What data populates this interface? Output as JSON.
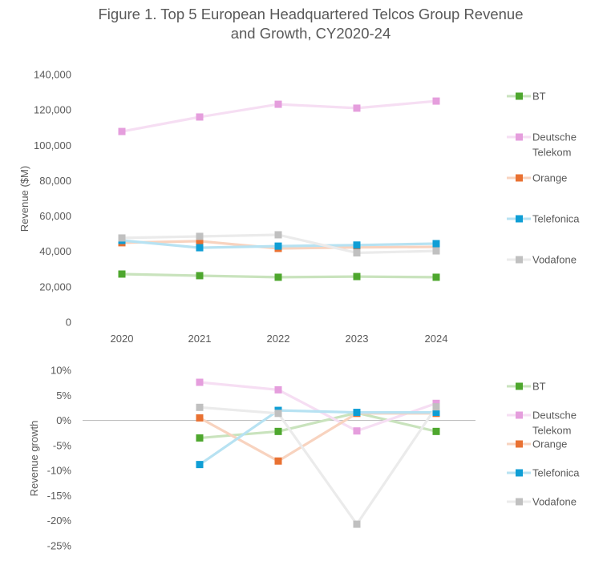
{
  "title_line1": "Figure 1. Top 5 European Headquartered Telcos Group Revenue",
  "title_line2": "and Growth, CY2020-24",
  "series_styles": [
    {
      "name": "BT",
      "marker": "#4ea72e",
      "line": "#c9e3bd"
    },
    {
      "name": "Deutsche Telekom",
      "marker": "#e59edd",
      "line": "#f6def3"
    },
    {
      "name": "Orange",
      "marker": "#e97132",
      "line": "#f8d3bf"
    },
    {
      "name": "Telefonica",
      "marker": "#0f9ed5",
      "line": "#b7e2f2"
    },
    {
      "name": "Vodafone",
      "marker": "#c0c0c0",
      "line": "#ebebeb"
    }
  ],
  "chart_data": [
    {
      "type": "line",
      "title": "Revenue",
      "xlabel": "",
      "ylabel": "Revenue ($M)",
      "categories": [
        "2020",
        "2021",
        "2022",
        "2023",
        "2024"
      ],
      "ylim": [
        0,
        140000
      ],
      "yticks": [
        0,
        20000,
        40000,
        60000,
        80000,
        100000,
        120000,
        140000
      ],
      "ytick_labels": [
        "0",
        "20,000",
        "40,000",
        "60,000",
        "80,000",
        "100,000",
        "120,000",
        "140,000"
      ],
      "grid": false,
      "legend_position": "right",
      "legend": [
        {
          "label_lines": [
            "BT"
          ]
        },
        {
          "label_lines": [
            "Deutsche",
            "Telekom"
          ]
        },
        {
          "label_lines": [
            "Orange"
          ]
        },
        {
          "label_lines": [
            "Telefonica"
          ]
        },
        {
          "label_lines": [
            "Vodafone"
          ]
        }
      ],
      "series": [
        {
          "name": "BT",
          "values": [
            27200,
            26300,
            25400,
            25800,
            25400
          ]
        },
        {
          "name": "Deutsche Telekom",
          "values": [
            107800,
            116000,
            123200,
            121000,
            125000
          ]
        },
        {
          "name": "Orange",
          "values": [
            44900,
            45800,
            41700,
            42300,
            42600
          ]
        },
        {
          "name": "Telefonica",
          "values": [
            46200,
            42100,
            43000,
            43600,
            44400
          ]
        },
        {
          "name": "Vodafone",
          "values": [
            47600,
            48500,
            49400,
            39200,
            40300
          ]
        }
      ]
    },
    {
      "type": "line",
      "title": "Revenue growth",
      "xlabel": "",
      "ylabel": "Revenue growth",
      "categories": [
        "2020",
        "2021",
        "2022",
        "2023",
        "2024"
      ],
      "ylim": [
        -25,
        10
      ],
      "yticks": [
        10,
        5,
        0,
        -5,
        -10,
        -15,
        -20,
        -25
      ],
      "ytick_labels": [
        "10%",
        "5%",
        "0%",
        "-5%",
        "-10%",
        "-15%",
        "-20%",
        "-25%"
      ],
      "grid": false,
      "zero_line": true,
      "legend_position": "right",
      "legend": [
        {
          "label_lines": [
            "BT"
          ]
        },
        {
          "label_lines": [
            "Deutsche",
            "Telekom"
          ]
        },
        {
          "label_lines": [
            "Orange"
          ]
        },
        {
          "label_lines": [
            "Telefonica"
          ]
        },
        {
          "label_lines": [
            "Vodafone"
          ]
        }
      ],
      "series": [
        {
          "name": "BT",
          "values": [
            null,
            -3.5,
            -2.2,
            1.5,
            -2.2
          ]
        },
        {
          "name": "Deutsche Telekom",
          "values": [
            null,
            7.6,
            6.1,
            -2.1,
            3.4
          ]
        },
        {
          "name": "Orange",
          "values": [
            null,
            0.5,
            -8.1,
            1.4,
            1.4
          ]
        },
        {
          "name": "Telefonica",
          "values": [
            null,
            -8.8,
            2.0,
            1.6,
            1.6
          ]
        },
        {
          "name": "Vodafone",
          "values": [
            null,
            2.6,
            1.4,
            -20.7,
            2.7
          ]
        }
      ]
    }
  ]
}
